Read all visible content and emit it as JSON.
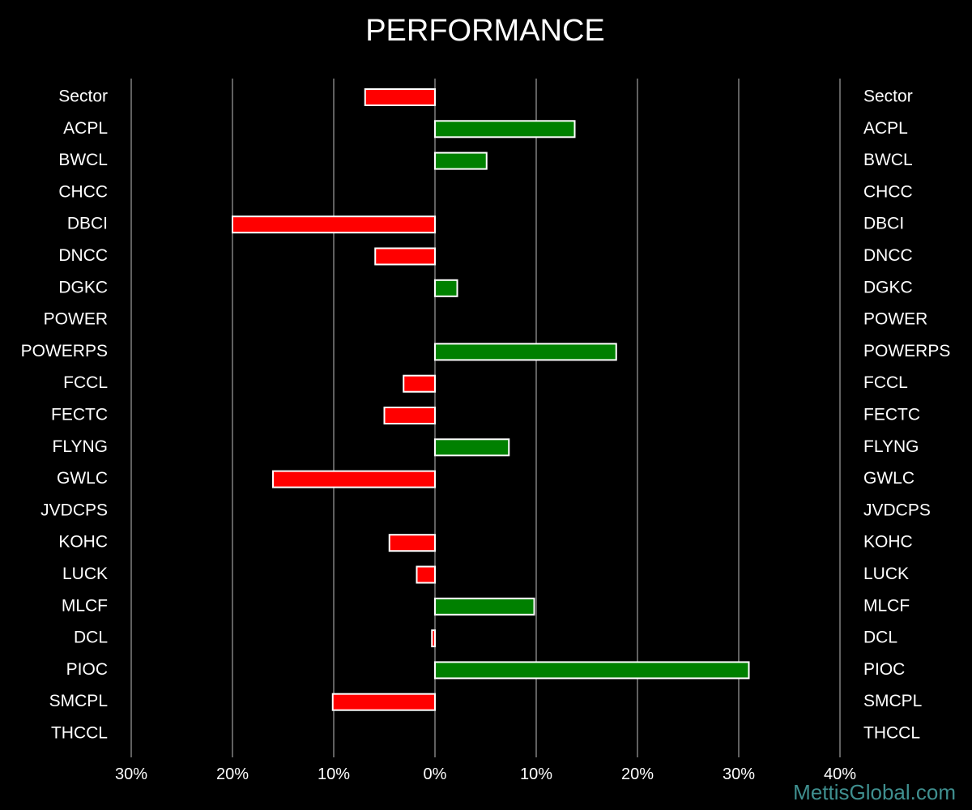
{
  "chart_data": {
    "type": "bar",
    "orientation": "horizontal",
    "title": "PERFORMANCE",
    "xlabel": "",
    "ylabel": "",
    "xlim": [
      -30,
      40
    ],
    "xticks": [
      -30,
      -20,
      -10,
      0,
      10,
      20,
      30,
      40
    ],
    "xtick_labels": [
      "30%",
      "20%",
      "10%",
      "0%",
      "10%",
      "20%",
      "30%",
      "40%"
    ],
    "grid": "vertical",
    "categories": [
      "Sector",
      "ACPL",
      "BWCL",
      "CHCC",
      "DBCI",
      "DNCC",
      "DGKC",
      "POWER",
      "POWERPS",
      "FCCL",
      "FECTC",
      "FLYNG",
      "GWLC",
      "JVDCPS",
      "KOHC",
      "LUCK",
      "MLCF",
      "DCL",
      "PIOC",
      "SMCPL",
      "THCCL"
    ],
    "values": [
      -6.9,
      13.8,
      5.1,
      0,
      -20.0,
      -5.9,
      2.2,
      0,
      17.9,
      -3.1,
      -5.0,
      7.3,
      -16.0,
      0,
      -4.5,
      -1.8,
      9.8,
      -0.3,
      31.0,
      -10.1,
      0
    ],
    "colors": {
      "positive": "#008000",
      "negative": "#ff0000",
      "outline": "#ffffff",
      "grid": "#808080",
      "background": "#000000"
    }
  },
  "watermark": "MettisGlobal.com"
}
